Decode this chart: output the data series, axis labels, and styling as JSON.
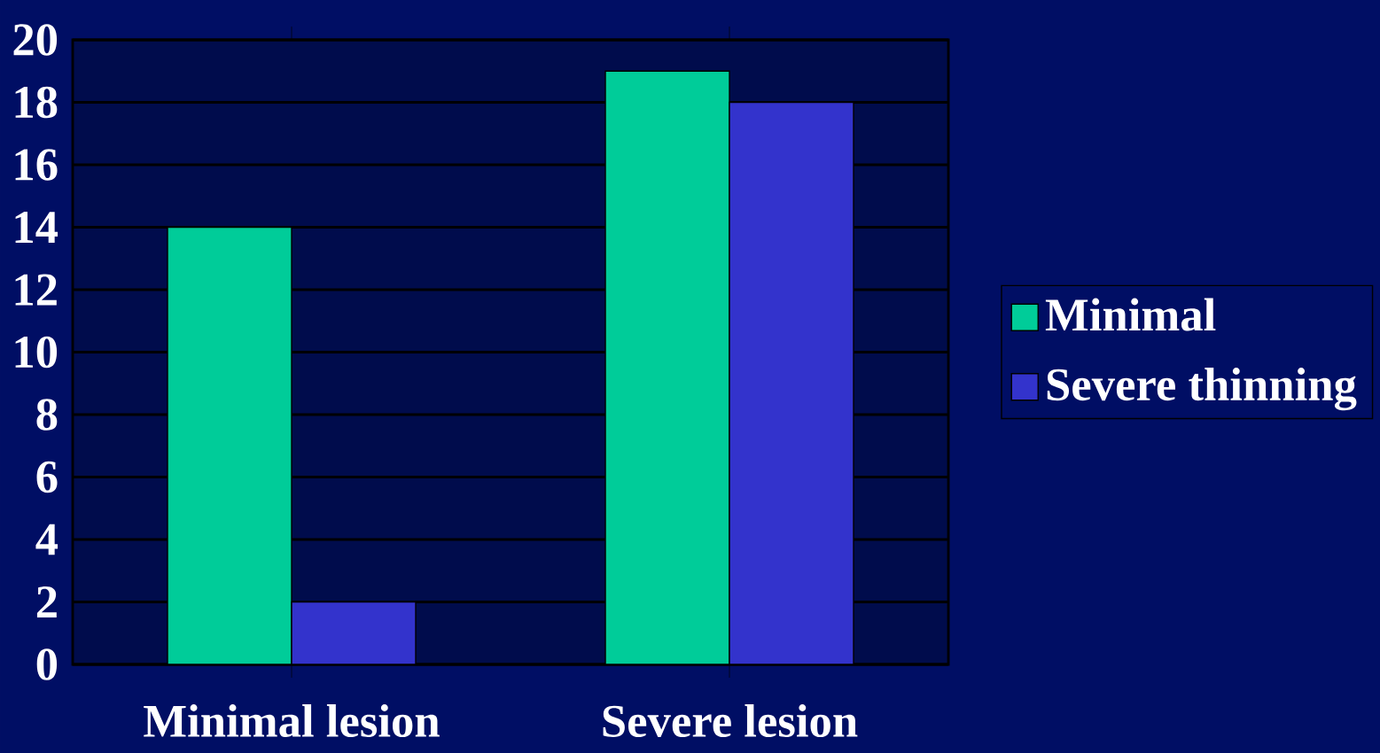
{
  "chart_data": {
    "type": "bar",
    "categories": [
      "Minimal lesion",
      "Severe lesion"
    ],
    "series": [
      {
        "name": "Minimal",
        "color": "#00cc99",
        "values": [
          14,
          19
        ]
      },
      {
        "name": "Severe thinning",
        "color": "#3333cc",
        "values": [
          2,
          18
        ]
      }
    ],
    "ylim": [
      0,
      20
    ],
    "yticks": [
      0,
      2,
      4,
      6,
      8,
      10,
      12,
      14,
      16,
      18,
      20
    ],
    "grid": "y",
    "legend": "right"
  }
}
